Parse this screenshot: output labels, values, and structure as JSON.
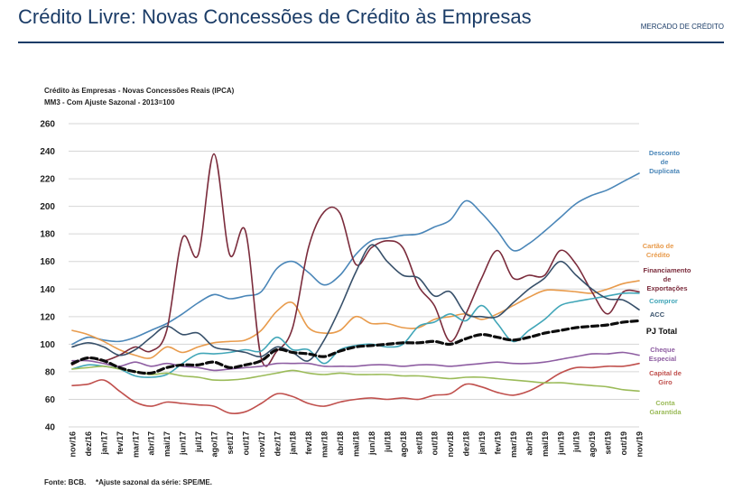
{
  "header": {
    "title": "Crédito Livre: Novas Concessões de Crédito às Empresas",
    "section": "MERCADO DE CRÉDITO",
    "rule_color": "#1b3c67"
  },
  "footer": {
    "source": "Fonte: BCB.",
    "note": "*Ajuste sazonal da série: SPE/ME."
  },
  "chart_data": {
    "type": "line",
    "title": "Crédito às Empresas - Novas Concessões Reais (IPCA)",
    "subtitle": "MM3 - Com Ajuste Sazonal - 2013=100",
    "xlabel": "",
    "ylabel": "",
    "ylim": [
      40,
      260
    ],
    "yticks": [
      40,
      60,
      80,
      100,
      120,
      140,
      160,
      180,
      200,
      220,
      240,
      260
    ],
    "grid": true,
    "legend": "right, labels at line ends",
    "categories": [
      "nov/16",
      "dez/16",
      "jan/17",
      "fev/17",
      "mar/17",
      "abr/17",
      "mai/17",
      "jun/17",
      "jul/17",
      "ago/17",
      "set/17",
      "out/17",
      "nov/17",
      "dez/17",
      "jan/18",
      "fev/18",
      "mar/18",
      "abr/18",
      "mai/18",
      "jun/18",
      "jul/18",
      "ago/18",
      "set/18",
      "out/18",
      "nov/18",
      "dez/18",
      "jan/19",
      "fev/19",
      "mar/19",
      "abr/19",
      "mai/19",
      "jun/19",
      "jul/19",
      "ago/19",
      "set/19",
      "out/19",
      "nov/19"
    ],
    "series": [
      {
        "name": "Desconto de Duplicata",
        "label_lines": [
          "Desconto",
          "de",
          "Duplicata"
        ],
        "color": "#4a86b8",
        "width": 1.6,
        "values": [
          100,
          105,
          103,
          102,
          105,
          110,
          115,
          122,
          130,
          136,
          133,
          135,
          138,
          155,
          160,
          152,
          143,
          150,
          165,
          175,
          177,
          179,
          180,
          185,
          190,
          204,
          195,
          182,
          168,
          173,
          182,
          192,
          202,
          208,
          212,
          218,
          224
        ]
      },
      {
        "name": "Cartão de Crédito",
        "label_lines": [
          "Cartão de",
          "Crédito"
        ],
        "color": "#e89b4c",
        "width": 1.6,
        "values": [
          110,
          107,
          102,
          96,
          92,
          90,
          98,
          94,
          98,
          101,
          102,
          103,
          110,
          124,
          130,
          112,
          108,
          110,
          120,
          115,
          115,
          112,
          112,
          118,
          120,
          122,
          118,
          122,
          128,
          134,
          139,
          139,
          138,
          137,
          140,
          144,
          146
        ]
      },
      {
        "name": "Financiamento de Exportações",
        "label_lines": [
          "Financiamento",
          "de",
          "Exportações"
        ],
        "color": "#7b2c3c",
        "width": 1.6,
        "values": [
          85,
          90,
          88,
          92,
          98,
          95,
          110,
          177,
          165,
          238,
          165,
          182,
          90,
          95,
          112,
          170,
          196,
          195,
          158,
          170,
          175,
          170,
          142,
          128,
          102,
          122,
          148,
          168,
          148,
          150,
          150,
          168,
          158,
          138,
          122,
          138,
          138
        ]
      },
      {
        "name": "Compror",
        "label_lines": [
          "Compror"
        ],
        "color": "#41a6b8",
        "width": 1.6,
        "values": [
          82,
          85,
          84,
          82,
          77,
          76,
          78,
          86,
          93,
          93,
          94,
          96,
          95,
          105,
          96,
          96,
          86,
          96,
          99,
          100,
          98,
          100,
          113,
          116,
          122,
          117,
          128,
          115,
          102,
          110,
          118,
          128,
          131,
          133,
          135,
          137,
          137
        ]
      },
      {
        "name": "ACC",
        "label_lines": [
          "ACC"
        ],
        "color": "#37506a",
        "width": 1.6,
        "values": [
          98,
          101,
          98,
          92,
          96,
          105,
          113,
          107,
          108,
          98,
          96,
          94,
          91,
          98,
          94,
          88,
          103,
          126,
          152,
          172,
          160,
          150,
          148,
          135,
          138,
          122,
          120,
          120,
          130,
          140,
          148,
          160,
          150,
          140,
          133,
          132,
          125
        ]
      },
      {
        "name": "PJ Total",
        "label_lines": [
          "PJ Total"
        ],
        "color": "#0d0d0d",
        "width": 3.2,
        "dashed": true,
        "values": [
          86,
          90,
          88,
          83,
          80,
          79,
          83,
          85,
          85,
          87,
          83,
          85,
          88,
          96,
          94,
          93,
          91,
          95,
          98,
          99,
          100,
          101,
          101,
          102,
          100,
          104,
          107,
          105,
          103,
          105,
          108,
          110,
          112,
          113,
          114,
          116,
          117
        ]
      },
      {
        "name": "Cheque Especial",
        "label_lines": [
          "Cheque",
          "Especial"
        ],
        "color": "#8e5ea2",
        "width": 1.6,
        "values": [
          88,
          88,
          86,
          84,
          87,
          84,
          86,
          84,
          83,
          81,
          82,
          83,
          84,
          86,
          86,
          86,
          84,
          84,
          84,
          85,
          85,
          84,
          85,
          85,
          84,
          85,
          86,
          87,
          86,
          86,
          87,
          89,
          91,
          93,
          93,
          94,
          92
        ]
      },
      {
        "name": "Capital de Giro",
        "label_lines": [
          "Capital de",
          "Giro"
        ],
        "color": "#c0504d",
        "width": 1.6,
        "values": [
          70,
          71,
          74,
          66,
          58,
          55,
          58,
          57,
          56,
          55,
          50,
          51,
          57,
          64,
          62,
          57,
          55,
          58,
          60,
          61,
          60,
          61,
          60,
          63,
          64,
          71,
          69,
          65,
          63,
          66,
          72,
          79,
          83,
          83,
          84,
          84,
          86
        ]
      },
      {
        "name": "Conta Garantida",
        "label_lines": [
          "Conta",
          "Garantida"
        ],
        "color": "#9bbb59",
        "width": 1.6,
        "values": [
          82,
          83,
          84,
          82,
          80,
          78,
          79,
          77,
          76,
          74,
          74,
          75,
          77,
          79,
          81,
          79,
          78,
          79,
          78,
          78,
          78,
          77,
          77,
          76,
          75,
          76,
          76,
          75,
          74,
          73,
          72,
          72,
          71,
          70,
          69,
          67,
          66
        ]
      }
    ]
  }
}
